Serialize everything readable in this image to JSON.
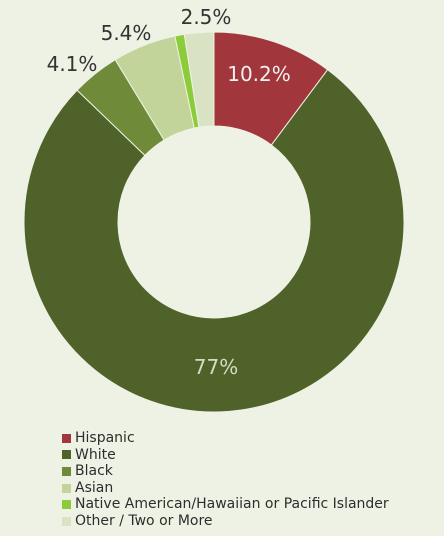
{
  "chart_data": {
    "type": "pie",
    "title": "",
    "categories": [
      "Hispanic",
      "White",
      "Black",
      "Asian",
      "Native American/Hawaiian or Pacific Islander",
      "Other / Two or More"
    ],
    "values": [
      10.2,
      77,
      4.1,
      5.4,
      0.8,
      2.5
    ],
    "data_labels": [
      "10.2%",
      "77%",
      "4.1%",
      "5.4%",
      "",
      "2.5%"
    ],
    "colors": [
      "#a1373c",
      "#4f6229",
      "#6f8b3a",
      "#c3d49b",
      "#8ccc3b",
      "#d9e3c3"
    ],
    "legend_position": "bottom-left",
    "donut": true
  }
}
